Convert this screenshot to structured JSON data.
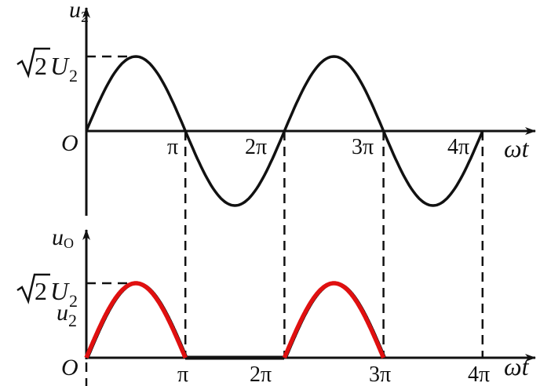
{
  "top_plot": {
    "y_label": "u",
    "y_label_sub": "2",
    "peak_label_root": "2",
    "peak_label_var": "U",
    "peak_label_sub": "2",
    "origin_label": "O",
    "x_label": "ωt",
    "ticks": [
      "π",
      "2π",
      "3π",
      "4π"
    ],
    "waveform": "sine",
    "cycles": 2
  },
  "bottom_plot": {
    "y_label": "u",
    "y_label_sub": "O",
    "peak_label_root": "2",
    "peak_label_var": "U",
    "peak_label_sub": "2",
    "input_label": "u",
    "input_label_sub": "2",
    "origin_label": "O",
    "x_label": "ωt",
    "ticks": [
      "π",
      "2π",
      "3π",
      "4π"
    ],
    "waveform": "half-wave rectified sine",
    "colors": {
      "output": "#e01010",
      "input": "#111111"
    }
  }
}
